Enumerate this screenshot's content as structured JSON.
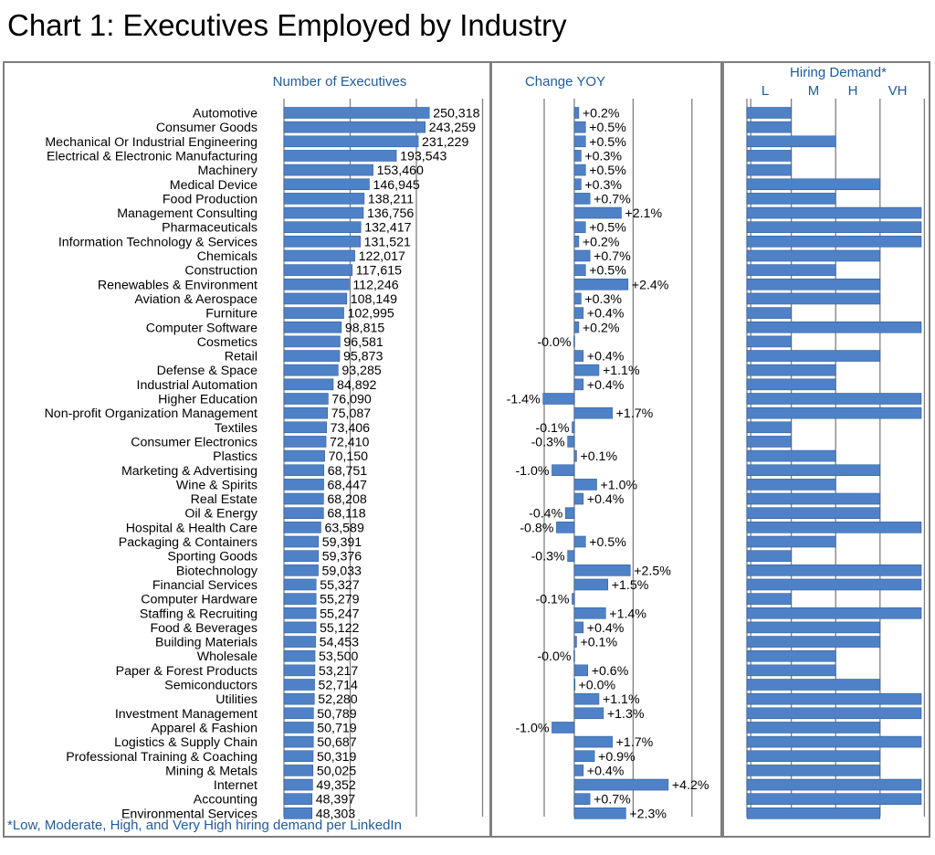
{
  "title": "Chart 1: Executives Employed by Industry",
  "footnote": "*Low, Moderate, High, and Very High hiring demand per LinkedIn",
  "colors": {
    "bar": "#4f81c7",
    "bar_edge": "#2f5f9e",
    "header": "#1f5c99",
    "grid": "#7f7f7f"
  },
  "chart_data": [
    {
      "type": "bar",
      "orientation": "horizontal",
      "title": "Number of Executives",
      "xlim": [
        0,
        375000
      ],
      "grid": true,
      "categories": [
        "Automotive",
        "Consumer Goods",
        "Mechanical Or Industrial Engineering",
        "Electrical & Electronic Manufacturing",
        "Machinery",
        "Medical Device",
        "Food Production",
        "Management Consulting",
        "Pharmaceuticals",
        "Information Technology & Services",
        "Chemicals",
        "Construction",
        "Renewables & Environment",
        "Aviation & Aerospace",
        "Furniture",
        "Computer Software",
        "Cosmetics",
        "Retail",
        "Defense & Space",
        "Industrial Automation",
        "Higher Education",
        "Non-profit Organization Management",
        "Textiles",
        "Consumer Electronics",
        "Plastics",
        "Marketing & Advertising",
        "Wine & Spirits",
        "Real Estate",
        "Oil & Energy",
        "Hospital & Health Care",
        "Packaging & Containers",
        "Sporting Goods",
        "Biotechnology",
        "Financial Services",
        "Computer Hardware",
        "Staffing & Recruiting",
        "Food & Beverages",
        "Building Materials",
        "Wholesale",
        "Paper & Forest Products",
        "Semiconductors",
        "Utilities",
        "Investment Management",
        "Apparel & Fashion",
        "Logistics & Supply Chain",
        "Professional Training & Coaching",
        "Mining & Metals",
        "Internet",
        "Accounting",
        "Environmental Services"
      ],
      "values": [
        250318,
        243259,
        231229,
        193543,
        153460,
        146945,
        138211,
        136756,
        132417,
        131521,
        122017,
        117615,
        112246,
        108149,
        102995,
        98815,
        96581,
        95873,
        93285,
        84892,
        76090,
        75087,
        73406,
        72410,
        70150,
        68751,
        68447,
        68208,
        68118,
        63589,
        59391,
        59376,
        59033,
        55327,
        55279,
        55247,
        55122,
        54453,
        53500,
        53217,
        52714,
        52280,
        50789,
        50719,
        50687,
        50319,
        50025,
        49352,
        48397,
        48303
      ],
      "value_labels": [
        "250,318",
        "243,259",
        "231,229",
        "193,543",
        "153,460",
        "146,945",
        "138,211",
        "136,756",
        "132,417",
        "131,521",
        "122,017",
        "117,615",
        "112,246",
        "108,149",
        "102,995",
        "98,815",
        "96,581",
        "95,873",
        "93,285",
        "84,892",
        "76,090",
        "75,087",
        "73,406",
        "72,410",
        "70,150",
        "68,751",
        "68,447",
        "68,208",
        "68,118",
        "63,589",
        "59,391",
        "59,376",
        "59,033",
        "55,327",
        "55,279",
        "55,247",
        "55,122",
        "54,453",
        "53,500",
        "53,217",
        "52,714",
        "52,280",
        "50,789",
        "50,719",
        "50,687",
        "50,319",
        "50,025",
        "49,352",
        "48,397",
        "48,303"
      ]
    },
    {
      "type": "bar",
      "orientation": "horizontal",
      "title": "Change YOY",
      "unit": "%",
      "xlim": [
        -2.0,
        6.0
      ],
      "grid": true,
      "values": [
        0.2,
        0.5,
        0.5,
        0.3,
        0.5,
        0.3,
        0.7,
        2.1,
        0.5,
        0.2,
        0.7,
        0.5,
        2.4,
        0.3,
        0.4,
        0.2,
        -0.02,
        0.4,
        1.1,
        0.4,
        -1.4,
        1.7,
        -0.1,
        -0.3,
        0.1,
        -1.0,
        1.0,
        0.4,
        -0.4,
        -0.8,
        0.5,
        -0.3,
        2.5,
        1.5,
        -0.1,
        1.4,
        0.4,
        0.1,
        -0.02,
        0.6,
        0.02,
        1.1,
        1.3,
        -1.0,
        1.7,
        0.9,
        0.4,
        4.2,
        0.7,
        2.3
      ],
      "value_labels": [
        "+0.2%",
        "+0.5%",
        "+0.5%",
        "+0.3%",
        "+0.5%",
        "+0.3%",
        "+0.7%",
        "+2.1%",
        "+0.5%",
        "+0.2%",
        "+0.7%",
        "+0.5%",
        "+2.4%",
        "+0.3%",
        "+0.4%",
        "+0.2%",
        "-0.0%",
        "+0.4%",
        "+1.1%",
        "+0.4%",
        "-1.4%",
        "+1.7%",
        "-0.1%",
        "-0.3%",
        "+0.1%",
        "-1.0%",
        "+1.0%",
        "+0.4%",
        "-0.4%",
        "-0.8%",
        "+0.5%",
        "-0.3%",
        "+2.5%",
        "+1.5%",
        "-0.1%",
        "+1.4%",
        "+0.4%",
        "+0.1%",
        "-0.0%",
        "+0.6%",
        "+0.0%",
        "+1.1%",
        "+1.3%",
        "-1.0%",
        "+1.7%",
        "+0.9%",
        "+0.4%",
        "+4.2%",
        "+0.7%",
        "+2.3%"
      ]
    },
    {
      "type": "bar",
      "orientation": "horizontal",
      "title": "Hiring Demand*",
      "levels": [
        "L",
        "M",
        "H",
        "VH"
      ],
      "grid": true,
      "values": [
        1,
        1,
        2,
        1,
        1,
        3,
        2,
        4,
        4,
        4,
        3,
        2,
        3,
        3,
        1,
        4,
        1,
        3,
        2,
        2,
        4,
        4,
        1,
        1,
        2,
        3,
        2,
        3,
        3,
        4,
        2,
        1,
        4,
        4,
        1,
        4,
        3,
        3,
        2,
        2,
        3,
        4,
        4,
        3,
        4,
        3,
        3,
        4,
        4,
        3
      ]
    }
  ]
}
